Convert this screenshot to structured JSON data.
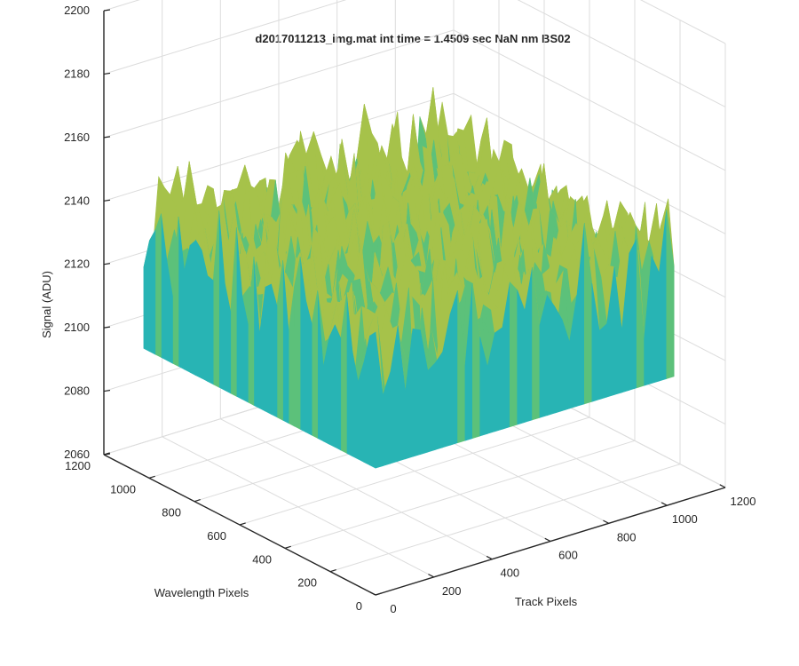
{
  "chart_data": {
    "type": "surface",
    "title": "d2017011213_img.mat int time = 1.4509 sec  NaN nm BS02",
    "xlabel": "Track Pixels",
    "ylabel": "Wavelength Pixels",
    "zlabel": "Signal (ADU)",
    "xlim": [
      0,
      1200
    ],
    "ylim": [
      0,
      1200
    ],
    "zlim": [
      2060,
      2200
    ],
    "x_ticks": [
      0,
      200,
      400,
      600,
      800,
      1000,
      1200
    ],
    "y_ticks": [
      0,
      200,
      400,
      600,
      800,
      1000,
      1200
    ],
    "z_ticks": [
      2060,
      2080,
      2100,
      2120,
      2140,
      2160,
      2180,
      2200
    ],
    "x_extent": [
      0,
      1024
    ],
    "y_extent": [
      0,
      1024
    ],
    "z_mean": 2135,
    "z_range_observed": [
      2055,
      2192
    ],
    "grid": true,
    "colormap": "parula",
    "colormap_colors": [
      "#0072bd",
      "#0f99d3",
      "#28b4b4",
      "#5cc17a",
      "#a6c24a",
      "#e5c13a",
      "#f5c022"
    ]
  }
}
